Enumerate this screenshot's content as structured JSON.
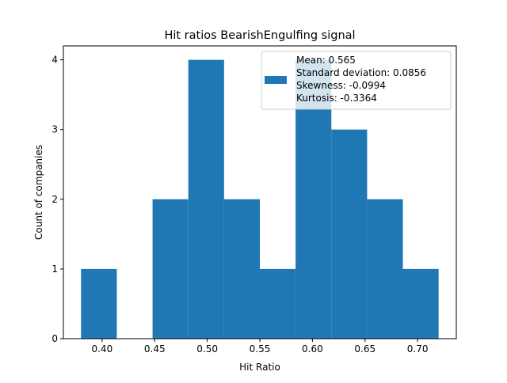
{
  "chart_data": {
    "type": "bar",
    "title": "Hit ratios BearishEngulfing signal",
    "xlabel": "Hit Ratio",
    "ylabel": "Count of companies",
    "xlim": [
      0.3632,
      0.7368
    ],
    "ylim": [
      0,
      4.2
    ],
    "xticks": [
      "0.40",
      "0.45",
      "0.50",
      "0.55",
      "0.60",
      "0.65",
      "0.70"
    ],
    "yticks": [
      "0",
      "1",
      "2",
      "3",
      "4"
    ],
    "bin_edges": [
      0.38,
      0.414,
      0.448,
      0.482,
      0.516,
      0.55,
      0.584,
      0.618,
      0.652,
      0.686,
      0.72
    ],
    "values": [
      1,
      0,
      2,
      4,
      2,
      1,
      4,
      3,
      2,
      1
    ],
    "bar_color": "#1f77b4",
    "grid": false,
    "legend": {
      "position": "top-right",
      "lines": [
        "Mean: 0.565",
        "Standard deviation: 0.0856",
        "Skewness: -0.0994",
        "Kurtosis: -0.3364"
      ]
    }
  }
}
